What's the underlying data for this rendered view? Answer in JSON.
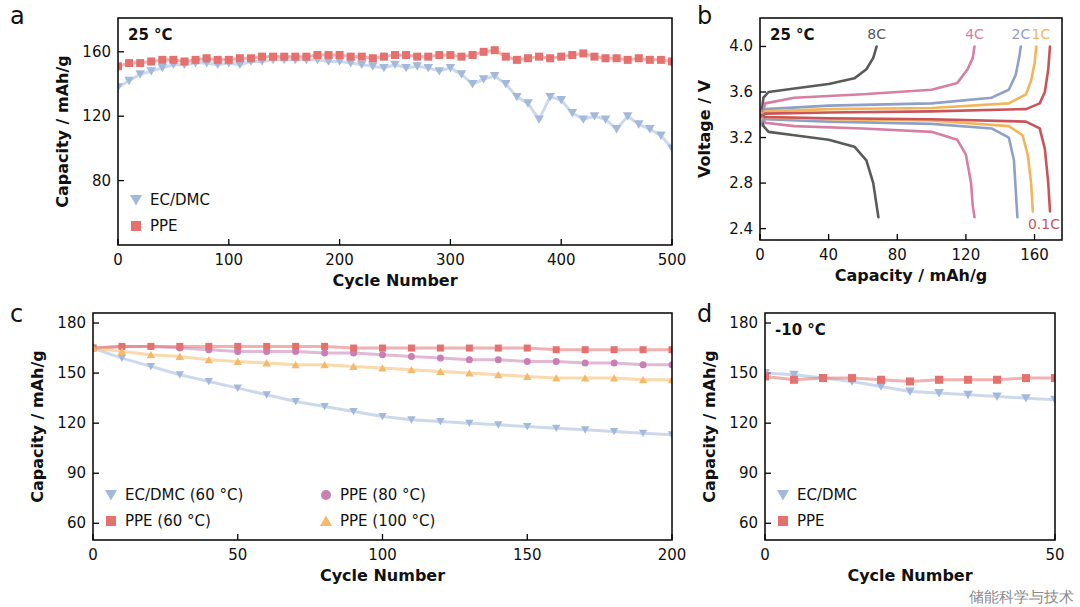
{
  "watermark": "储能科学与技术",
  "chart_data": [
    {
      "type": "scatter",
      "panel": "a",
      "annotation": "25 °C",
      "x_label": "Cycle Number",
      "y_label": "Capacity / mAh/g",
      "x": [
        0,
        10,
        20,
        30,
        40,
        50,
        60,
        70,
        80,
        90,
        100,
        110,
        120,
        130,
        140,
        150,
        160,
        170,
        180,
        190,
        200,
        210,
        220,
        230,
        240,
        250,
        260,
        270,
        280,
        290,
        300,
        310,
        320,
        330,
        340,
        350,
        360,
        370,
        380,
        390,
        400,
        410,
        420,
        430,
        440,
        450,
        460,
        470,
        480,
        490,
        500
      ],
      "xlim": [
        0,
        500
      ],
      "ylim": [
        40,
        181
      ],
      "xticks": [
        0,
        100,
        200,
        300,
        400,
        500
      ],
      "yticks": [
        80,
        120,
        160
      ],
      "legend": "lower left",
      "series": [
        {
          "name": "EC/DMC",
          "color": "#a3b9dc",
          "marker": "triangle_down",
          "line_style": "solid",
          "values": [
            138,
            142,
            146,
            148,
            150,
            152,
            152,
            153,
            153,
            152,
            153,
            152,
            154,
            154,
            155,
            155,
            155,
            155,
            155,
            154,
            154,
            153,
            152,
            151,
            150,
            152,
            150,
            151,
            150,
            148,
            150,
            146,
            140,
            143,
            145,
            140,
            132,
            128,
            118,
            132,
            130,
            122,
            118,
            120,
            118,
            112,
            120,
            115,
            112,
            108,
            100
          ]
        },
        {
          "name": "PPE",
          "color": "#e5716f",
          "marker": "square",
          "line_style": "solid",
          "values": [
            151,
            153,
            153,
            154,
            155,
            155,
            154,
            155,
            156,
            155,
            155,
            156,
            156,
            157,
            157,
            157,
            157,
            157,
            158,
            158,
            158,
            157,
            157,
            156,
            157,
            158,
            158,
            157,
            157,
            158,
            158,
            157,
            158,
            160,
            161,
            157,
            155,
            156,
            157,
            156,
            157,
            158,
            159,
            157,
            156,
            156,
            155,
            156,
            155,
            155,
            154
          ]
        }
      ]
    },
    {
      "type": "line",
      "panel": "b",
      "annotation": "25 °C",
      "x_label": "Capacity / mAh/g",
      "y_label": "Voltage / V",
      "xlim": [
        0,
        176
      ],
      "ylim": [
        2.3,
        4.25
      ],
      "xticks": [
        0,
        40,
        80,
        120,
        160
      ],
      "yticks": [
        2.4,
        2.8,
        3.2,
        3.6,
        {
          "value": 4,
          "label": "4.0"
        }
      ],
      "series": [
        {
          "name": "8C",
          "color": "#5a5a5a",
          "line_style": "solid",
          "x": [
            0,
            2,
            5,
            20,
            40,
            55,
            62,
            66,
            68,
            null,
            0,
            2,
            5,
            20,
            40,
            55,
            62,
            66,
            68,
            69
          ],
          "values": [
            3.3,
            3.55,
            3.6,
            3.63,
            3.67,
            3.72,
            3.8,
            3.9,
            4.0,
            null,
            3.45,
            3.3,
            3.25,
            3.22,
            3.18,
            3.12,
            3.0,
            2.8,
            2.6,
            2.5
          ]
        },
        {
          "name": "4C",
          "color": "#d77ea3",
          "line_style": "solid",
          "x": [
            0,
            3,
            20,
            60,
            100,
            115,
            121,
            124,
            125,
            null,
            0,
            3,
            20,
            60,
            100,
            115,
            120,
            123,
            124,
            125
          ],
          "values": [
            3.3,
            3.5,
            3.55,
            3.58,
            3.62,
            3.68,
            3.8,
            3.9,
            4.0,
            null,
            3.45,
            3.33,
            3.3,
            3.28,
            3.25,
            3.18,
            3.05,
            2.8,
            2.6,
            2.5
          ]
        },
        {
          "name": "2C",
          "color": "#8fa0c8",
          "line_style": "solid",
          "x": [
            0,
            3,
            40,
            100,
            135,
            145,
            149,
            151,
            152,
            null,
            0,
            3,
            40,
            100,
            135,
            145,
            148,
            149,
            150
          ],
          "values": [
            3.3,
            3.45,
            3.48,
            3.5,
            3.55,
            3.62,
            3.75,
            3.9,
            4.0,
            null,
            3.42,
            3.36,
            3.34,
            3.32,
            3.28,
            3.2,
            3.0,
            2.75,
            2.5
          ]
        },
        {
          "name": "1C",
          "color": "#f2b65a",
          "line_style": "solid",
          "x": [
            0,
            3,
            40,
            100,
            145,
            155,
            158,
            160,
            161,
            null,
            0,
            3,
            40,
            100,
            145,
            153,
            156,
            158,
            159
          ],
          "values": [
            3.35,
            3.43,
            3.45,
            3.46,
            3.5,
            3.58,
            3.7,
            3.85,
            4.0,
            null,
            3.42,
            3.38,
            3.36,
            3.35,
            3.3,
            3.22,
            3.05,
            2.8,
            2.55
          ]
        },
        {
          "name": "0.1C",
          "color": "#c9555a",
          "line_style": "solid",
          "x": [
            0,
            3,
            40,
            100,
            155,
            163,
            166,
            168,
            169,
            null,
            0,
            3,
            40,
            100,
            155,
            163,
            166,
            168,
            169
          ],
          "values": [
            3.38,
            3.41,
            3.42,
            3.43,
            3.45,
            3.5,
            3.6,
            3.8,
            4.0,
            null,
            3.4,
            3.38,
            3.37,
            3.36,
            3.34,
            3.28,
            3.1,
            2.8,
            2.55
          ]
        }
      ]
    },
    {
      "type": "scatter",
      "panel": "c",
      "x_label": "Cycle Number",
      "y_label": "Capacity / mAh/g",
      "x": [
        0,
        10,
        20,
        30,
        40,
        50,
        60,
        70,
        80,
        90,
        100,
        110,
        120,
        130,
        140,
        150,
        160,
        170,
        180,
        190,
        200
      ],
      "xlim": [
        0,
        200
      ],
      "ylim": [
        50,
        186
      ],
      "xticks": [
        0,
        50,
        100,
        150,
        200
      ],
      "yticks": [
        60,
        90,
        120,
        150,
        180
      ],
      "legend": "lower left",
      "series": [
        {
          "name": "EC/DMC (60 °C)",
          "color": "#a3b9dc",
          "marker": "triangle_down",
          "line_style": "solid",
          "values": [
            165,
            159,
            154,
            149,
            145,
            141,
            137,
            133,
            130,
            127,
            124,
            122,
            121,
            120,
            119,
            118,
            117,
            116,
            115,
            114,
            113
          ]
        },
        {
          "name": "PPE (80 °C)",
          "color": "#c87fb3",
          "marker": "circle",
          "line_style": "solid",
          "values": [
            165,
            166,
            166,
            165,
            164,
            163,
            163,
            163,
            162,
            162,
            161,
            160,
            159,
            158,
            158,
            157,
            157,
            156,
            156,
            155,
            155
          ]
        },
        {
          "name": "PPE (60 °C)",
          "color": "#e5716f",
          "marker": "square",
          "line_style": "solid",
          "values": [
            165,
            166,
            166,
            166,
            166,
            166,
            166,
            166,
            166,
            165,
            165,
            165,
            165,
            165,
            165,
            165,
            164,
            164,
            164,
            164,
            164
          ]
        },
        {
          "name": "PPE (100 °C)",
          "color": "#f5b96a",
          "marker": "triangle",
          "line_style": "solid",
          "values": [
            165,
            163,
            161,
            160,
            158,
            157,
            156,
            155,
            155,
            154,
            153,
            152,
            151,
            150,
            149,
            148,
            147,
            147,
            147,
            146,
            146
          ]
        }
      ]
    },
    {
      "type": "scatter",
      "panel": "d",
      "annotation": "-10 °C",
      "x_label": "Cycle Number",
      "y_label": "Capacity / mAh/g",
      "x": [
        0,
        5,
        10,
        15,
        20,
        25,
        30,
        35,
        40,
        45,
        50
      ],
      "xlim": [
        0,
        50
      ],
      "ylim": [
        50,
        186
      ],
      "xticks": [
        0,
        50
      ],
      "yticks": [
        60,
        90,
        120,
        150,
        180
      ],
      "legend": "lower left",
      "series": [
        {
          "name": "EC/DMC",
          "color": "#a3b9dc",
          "marker": "triangle_down",
          "line_style": "solid",
          "values": [
            150,
            149,
            147,
            145,
            142,
            139,
            138,
            137,
            136,
            135,
            134
          ]
        },
        {
          "name": "PPE",
          "color": "#e5716f",
          "marker": "square",
          "line_style": "solid",
          "values": [
            148,
            146,
            147,
            147,
            146,
            145,
            146,
            146,
            146,
            147,
            147
          ]
        }
      ]
    }
  ]
}
